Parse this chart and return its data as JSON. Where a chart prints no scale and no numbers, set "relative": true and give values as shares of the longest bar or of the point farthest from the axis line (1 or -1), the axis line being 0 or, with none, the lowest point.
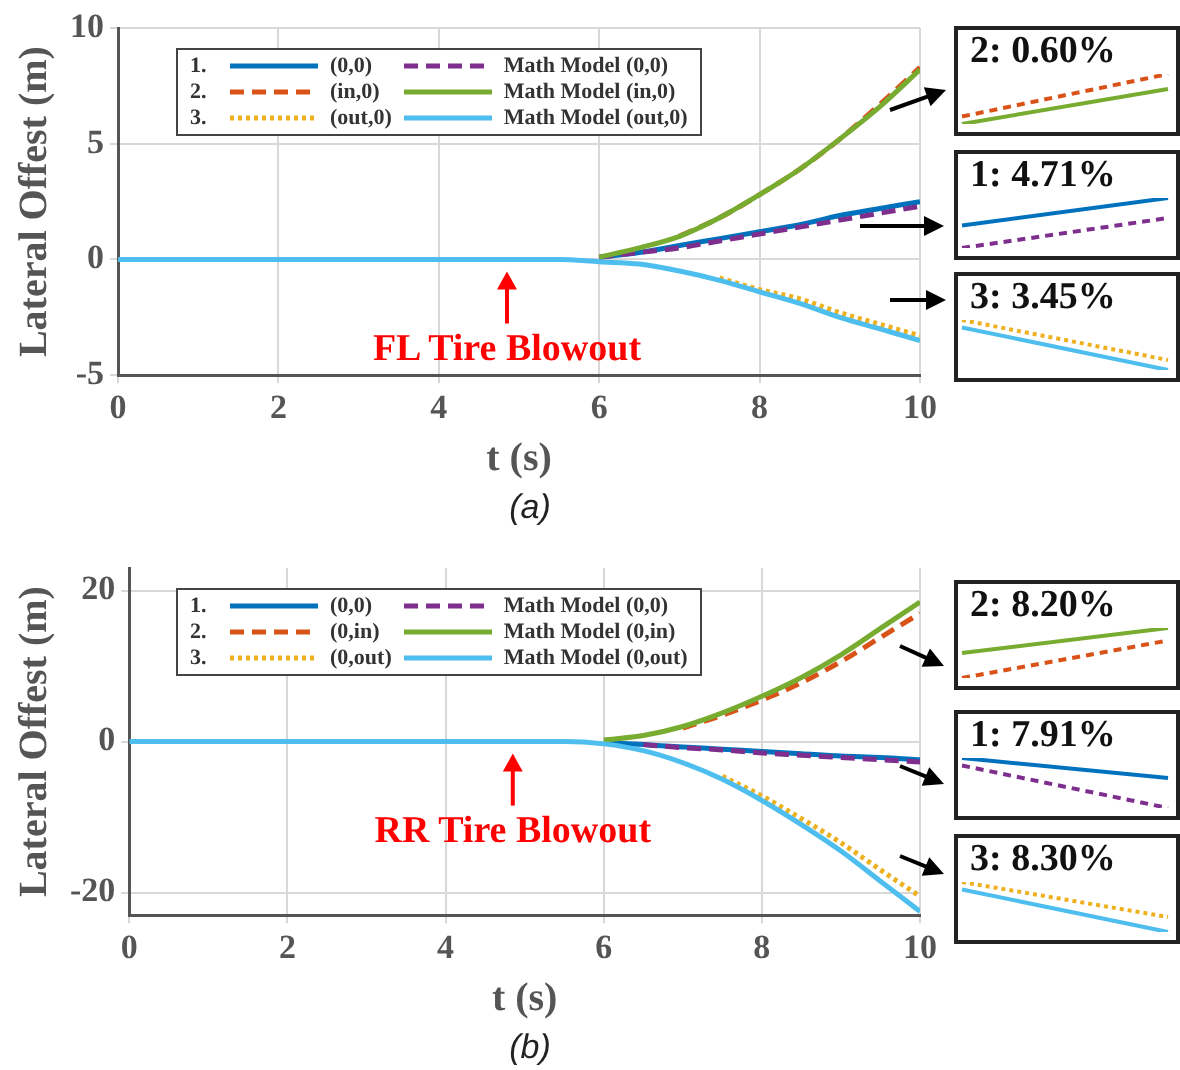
{
  "chart_data": [
    {
      "type": "line",
      "xlabel": "t (s)",
      "ylabel": "Lateral Offest (m)",
      "xlim": [
        0,
        10
      ],
      "xticks": [
        0,
        2,
        4,
        6,
        8,
        10
      ],
      "ylim": [
        -5,
        10
      ],
      "yticks": [
        -5,
        0,
        5,
        10
      ],
      "grid": true,
      "legend": "top left",
      "marker": "none",
      "x": [
        0,
        5,
        5.5,
        6,
        6.5,
        7,
        7.5,
        8,
        8.5,
        9,
        9.5,
        10
      ],
      "series": [
        {
          "name": "(0,0)",
          "color": "#0072bd",
          "line_style": "solid",
          "values": [
            null,
            null,
            null,
            0.1,
            0.3,
            0.6,
            0.9,
            1.2,
            1.5,
            1.9,
            2.2,
            2.5
          ]
        },
        {
          "name": "(in,0)",
          "color": "#d95319",
          "line_style": "dashed",
          "values": [
            null,
            null,
            null,
            null,
            null,
            1.0,
            1.8,
            2.8,
            3.9,
            5.2,
            6.7,
            8.3
          ]
        },
        {
          "name": "(out,0)",
          "color": "#edb120",
          "line_style": "dotted",
          "values": [
            null,
            null,
            null,
            null,
            null,
            null,
            -0.8,
            -1.3,
            -1.7,
            -2.3,
            -2.8,
            -3.3
          ]
        },
        {
          "name": "Math Model (0,0)",
          "color": "#7e2f8e",
          "line_style": "dashed",
          "values": [
            null,
            null,
            null,
            0.1,
            0.3,
            0.5,
            0.8,
            1.1,
            1.4,
            1.7,
            2.0,
            2.3
          ]
        },
        {
          "name": "Math Model (in,0)",
          "color": "#77ac30",
          "line_style": "solid",
          "values": [
            null,
            null,
            null,
            0.1,
            0.5,
            1.0,
            1.8,
            2.8,
            3.9,
            5.2,
            6.6,
            8.2
          ]
        },
        {
          "name": "Math Model (out,0)",
          "color": "#4dbeee",
          "line_style": "solid",
          "values": [
            0,
            0,
            0,
            -0.1,
            -0.2,
            -0.5,
            -0.9,
            -1.4,
            -1.9,
            -2.5,
            -3.0,
            -3.5
          ]
        }
      ],
      "annotations": [
        "1.",
        "2.",
        "3.",
        {
          "text": "FL Tire Blowout",
          "x": 4.85,
          "y": 0
        },
        "(a)"
      ]
    },
    {
      "type": "line",
      "title": "2: 0.60%",
      "relative": true,
      "categories": [
        null,
        null
      ],
      "series": [
        {
          "color": "#d95319",
          "line_style": "dashed",
          "values": [
            0.15,
            1
          ]
        },
        {
          "color": "#77ac30",
          "line_style": "solid",
          "values": [
            0,
            0.7
          ]
        }
      ]
    },
    {
      "type": "line",
      "title": "1: 4.71%",
      "relative": true,
      "categories": [
        null,
        null
      ],
      "series": [
        {
          "color": "#0072bd",
          "line_style": "solid",
          "values": [
            0.45,
            1
          ]
        },
        {
          "color": "#7e2f8e",
          "line_style": "dashed",
          "values": [
            0,
            0.6
          ]
        }
      ]
    },
    {
      "type": "line",
      "title": "3: 3.45%",
      "relative": true,
      "categories": [
        null,
        null
      ],
      "series": [
        {
          "color": "#edb120",
          "line_style": "dotted",
          "values": [
            1,
            0.2
          ]
        },
        {
          "color": "#4dbeee",
          "line_style": "solid",
          "values": [
            0.85,
            0
          ]
        }
      ]
    },
    {
      "type": "line",
      "xlabel": "t (s)",
      "ylabel": "Lateral Offest (m)",
      "xlim": [
        0,
        10
      ],
      "xticks": [
        0,
        2,
        4,
        6,
        8,
        10
      ],
      "ylim": [
        -23,
        23
      ],
      "yticks": [
        -20,
        0,
        20
      ],
      "grid": true,
      "legend": "top left",
      "marker": "none",
      "x": [
        0,
        5,
        5.5,
        6,
        6.5,
        7,
        7.5,
        8,
        8.5,
        9,
        9.5,
        10
      ],
      "series": [
        {
          "name": "(0,0)",
          "color": "#0072bd",
          "line_style": "solid",
          "values": [
            null,
            null,
            null,
            -0.1,
            -0.4,
            -0.7,
            -1,
            -1.3,
            -1.6,
            -1.9,
            -2.1,
            -2.4
          ]
        },
        {
          "name": "(0,in)",
          "color": "#d95319",
          "line_style": "dashed",
          "values": [
            null,
            null,
            null,
            null,
            null,
            1.8,
            3.5,
            5.5,
            7.8,
            10.6,
            13.8,
            17
          ]
        },
        {
          "name": "(0,out)",
          "color": "#edb120",
          "line_style": "dotted",
          "values": [
            null,
            null,
            null,
            null,
            null,
            null,
            -4.6,
            -7.2,
            -10.2,
            -13.4,
            -17,
            -20.5
          ]
        },
        {
          "name": "Math Model (0,0)",
          "color": "#7e2f8e",
          "line_style": "dashed",
          "values": [
            null,
            null,
            null,
            null,
            -0.4,
            -0.8,
            -1.1,
            -1.5,
            -1.8,
            -2.1,
            -2.4,
            -2.7
          ]
        },
        {
          "name": "Math Model (0,in)",
          "color": "#77ac30",
          "line_style": "solid",
          "values": [
            null,
            null,
            null,
            0.2,
            0.8,
            2,
            3.8,
            6,
            8.5,
            11.5,
            15,
            18.5
          ]
        },
        {
          "name": "Math Model (0,out)",
          "color": "#4dbeee",
          "line_style": "solid",
          "values": [
            0,
            0,
            0,
            -0.3,
            -1.2,
            -2.8,
            -5,
            -7.8,
            -11,
            -14.5,
            -18.5,
            -22.5
          ]
        }
      ],
      "annotations": [
        "1.",
        "2.",
        "3.",
        {
          "text": "RR Tire Blowout",
          "x": 4.85,
          "y": 0
        },
        "(b)"
      ]
    },
    {
      "type": "line",
      "title": "2: 8.20%",
      "relative": true,
      "categories": [
        null,
        null
      ],
      "series": [
        {
          "color": "#77ac30",
          "line_style": "solid",
          "values": [
            0.5,
            1
          ]
        },
        {
          "color": "#d95319",
          "line_style": "dashed",
          "values": [
            0,
            0.75
          ]
        }
      ]
    },
    {
      "type": "line",
      "title": "1: 7.91%",
      "relative": true,
      "categories": [
        null,
        null
      ],
      "series": [
        {
          "color": "#0072bd",
          "line_style": "solid",
          "values": [
            1,
            0.6
          ]
        },
        {
          "color": "#7e2f8e",
          "line_style": "dashed",
          "values": [
            0.85,
            0
          ]
        }
      ]
    },
    {
      "type": "line",
      "title": "3: 8.30%",
      "relative": true,
      "categories": [
        null,
        null
      ],
      "series": [
        {
          "color": "#edb120",
          "line_style": "dotted",
          "values": [
            1,
            0.3
          ]
        },
        {
          "color": "#4dbeee",
          "line_style": "solid",
          "values": [
            0.85,
            0
          ]
        }
      ]
    }
  ]
}
